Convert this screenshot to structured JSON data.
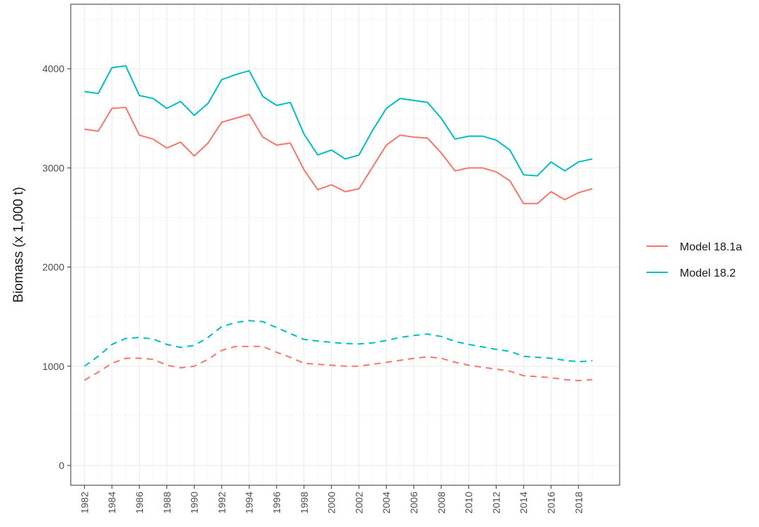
{
  "chart_data": {
    "type": "line",
    "title": "",
    "xlabel": "",
    "ylabel": "Biomass (x 1,000 t)",
    "xlim": [
      1981,
      2021
    ],
    "ylim": [
      -200,
      4650
    ],
    "y_ticks": [
      0,
      1000,
      2000,
      3000,
      4000
    ],
    "x_ticks": [
      1982,
      1984,
      1986,
      1988,
      1990,
      1992,
      1994,
      1996,
      1998,
      2000,
      2002,
      2004,
      2006,
      2008,
      2010,
      2012,
      2014,
      2016,
      2018
    ],
    "x_tick_labels": [
      "1982",
      "1984",
      "1986",
      "1988",
      "1990",
      "1992",
      "1994",
      "1996",
      "1998",
      "2000",
      "2002",
      "2004",
      "2006",
      "2008",
      "2010",
      "2012",
      "2014",
      "2016",
      "2018"
    ],
    "grid": true,
    "legend_position": "right",
    "x": [
      1982,
      1983,
      1984,
      1985,
      1986,
      1987,
      1988,
      1989,
      1990,
      1991,
      1992,
      1993,
      1994,
      1995,
      1996,
      1997,
      1998,
      1999,
      2000,
      2001,
      2002,
      2003,
      2004,
      2005,
      2006,
      2007,
      2008,
      2009,
      2010,
      2011,
      2012,
      2013,
      2014,
      2015,
      2016,
      2017,
      2018,
      2019
    ],
    "series": [
      {
        "name": "Model 18.1a",
        "color": "#f8766d",
        "solid": [
          3390,
          3370,
          3600,
          3610,
          3330,
          3290,
          3200,
          3260,
          3120,
          3250,
          3460,
          3500,
          3540,
          3310,
          3230,
          3250,
          2980,
          2780,
          2830,
          2760,
          2790,
          3010,
          3230,
          3330,
          3310,
          3300,
          3150,
          2970,
          3000,
          3000,
          2960,
          2870,
          2640,
          2640,
          2760,
          2680,
          2750,
          2790
        ],
        "dashed": [
          860,
          940,
          1030,
          1080,
          1080,
          1070,
          1010,
          985,
          1000,
          1070,
          1160,
          1200,
          1200,
          1200,
          1140,
          1090,
          1030,
          1020,
          1010,
          1000,
          1000,
          1020,
          1040,
          1060,
          1080,
          1095,
          1080,
          1040,
          1010,
          990,
          970,
          950,
          905,
          895,
          885,
          865,
          855,
          865
        ]
      },
      {
        "name": "Model 18.2",
        "color": "#00bfc4",
        "solid": [
          3770,
          3750,
          4010,
          4030,
          3730,
          3700,
          3600,
          3670,
          3530,
          3650,
          3890,
          3940,
          3980,
          3720,
          3630,
          3660,
          3340,
          3130,
          3180,
          3090,
          3130,
          3380,
          3600,
          3700,
          3680,
          3660,
          3500,
          3290,
          3320,
          3320,
          3280,
          3180,
          2930,
          2920,
          3060,
          2970,
          3060,
          3090
        ],
        "dashed": [
          1000,
          1100,
          1220,
          1280,
          1290,
          1275,
          1220,
          1190,
          1210,
          1290,
          1400,
          1440,
          1460,
          1450,
          1390,
          1330,
          1270,
          1255,
          1240,
          1230,
          1225,
          1235,
          1260,
          1290,
          1310,
          1325,
          1300,
          1250,
          1220,
          1195,
          1170,
          1150,
          1100,
          1090,
          1080,
          1060,
          1045,
          1055
        ]
      }
    ]
  }
}
